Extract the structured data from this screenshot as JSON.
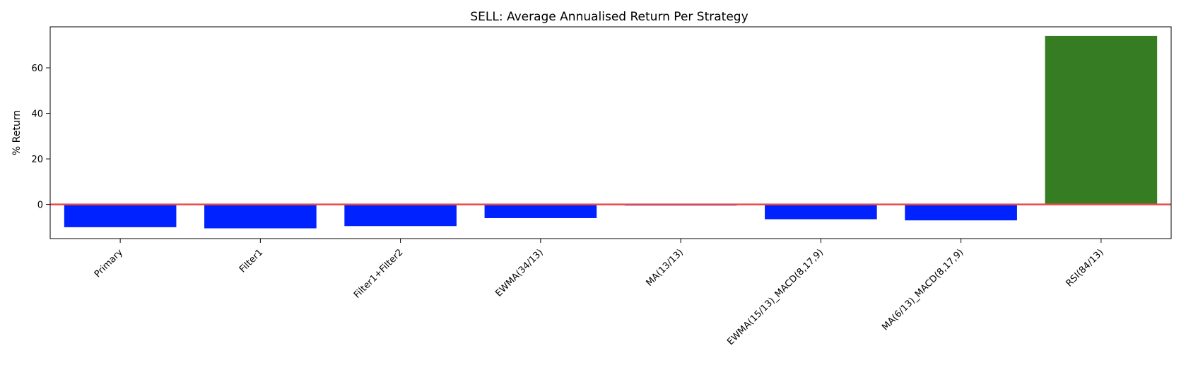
{
  "chart_data": {
    "type": "bar",
    "title": "SELL: Average Annualised Return Per Strategy",
    "xlabel": "",
    "ylabel": "% Return",
    "categories": [
      "Primary",
      "Filter1",
      "Filter1+Filter2",
      "EWMA(34/13)",
      "MA(13/13)",
      "EWMA(15/13)_MACD(8,17,9)",
      "MA(6/13)_MACD(8,17,9)",
      "RSI(84/13)"
    ],
    "values": [
      -10.0,
      -10.5,
      -9.5,
      -6.0,
      -0.5,
      -6.5,
      -7.0,
      74.0
    ],
    "bar_colors": [
      "#0022ff",
      "#0022ff",
      "#0022ff",
      "#0022ff",
      "#0022ff",
      "#0022ff",
      "#0022ff",
      "#367c22"
    ],
    "ylim": [
      -15,
      78
    ],
    "yticks": [
      0,
      20,
      40,
      60
    ],
    "reference_line": {
      "y": 0,
      "color": "#e84a4a"
    },
    "grid": false,
    "legend": "none"
  }
}
